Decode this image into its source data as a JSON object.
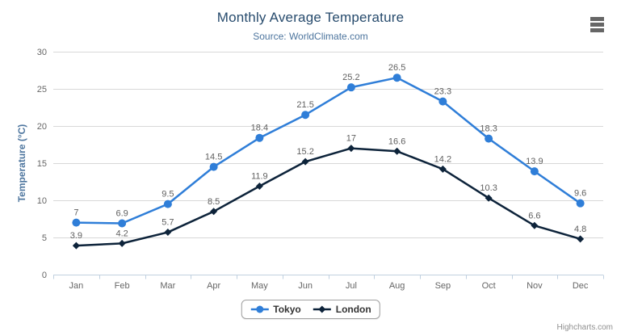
{
  "credits": "Highcharts.com",
  "icons": {
    "context_menu": "hamburger-icon"
  },
  "colors": {
    "title": "#274b6d",
    "subtitle": "#4d759e",
    "axis_title": "#4d759e",
    "axis_label": "#666666",
    "data_label": "#606060",
    "gridline": "#d8d8d8",
    "axis_line": "#c0d0e0",
    "legend_text": "#333333",
    "credits": "#909090",
    "menu_icon": "#666666"
  },
  "chart_data": {
    "type": "line",
    "title": "Monthly Average Temperature",
    "subtitle": "Source: WorldClimate.com",
    "xlabel": "",
    "ylabel": "Temperature (°C)",
    "ylim": [
      0,
      30
    ],
    "ytick_step": 5,
    "grid": true,
    "legend_position": "bottom",
    "categories": [
      "Jan",
      "Feb",
      "Mar",
      "Apr",
      "May",
      "Jun",
      "Jul",
      "Aug",
      "Sep",
      "Oct",
      "Nov",
      "Dec"
    ],
    "series": [
      {
        "name": "Tokyo",
        "color": "#2f7ed8",
        "marker": "circle",
        "values": [
          7,
          6.9,
          9.5,
          14.5,
          18.4,
          21.5,
          25.2,
          26.5,
          23.3,
          18.3,
          13.9,
          9.6
        ]
      },
      {
        "name": "London",
        "color": "#0d233a",
        "marker": "diamond",
        "values": [
          3.9,
          4.2,
          5.7,
          8.5,
          11.9,
          15.2,
          17,
          16.6,
          14.2,
          10.3,
          6.6,
          4.8
        ]
      }
    ]
  }
}
